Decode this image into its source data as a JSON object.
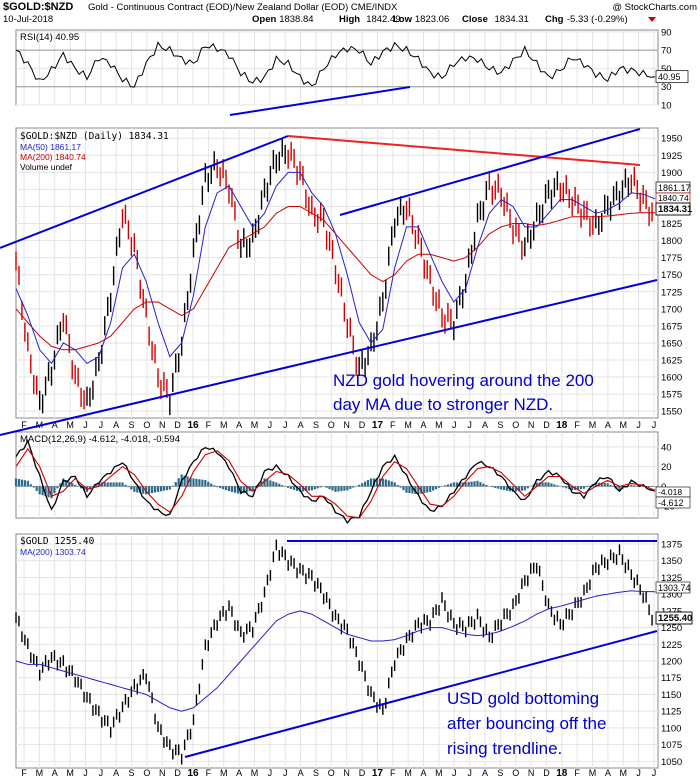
{
  "header": {
    "symbol": "$GOLD:$NZD",
    "description": "Gold - Continuous Contract (EOD)/New Zealand Dollar (EOD) CME/INDX",
    "watermark": "@ StockCharts.com",
    "date": "10-Jul-2018",
    "open_label": "Open",
    "open": "1838.84",
    "high_label": "High",
    "high": "1842.49",
    "low_label": "Low",
    "low": "1823.06",
    "close_label": "Close",
    "close": "1834.31",
    "chg_label": "Chg",
    "chg": "-5.33 (-0.29%)"
  },
  "colors": {
    "up": "#000000",
    "down": "#cc0000",
    "ma50": "#2222cc",
    "ma200": "#cc0000",
    "trendline": "#0000dd",
    "resistance": "#ee2222",
    "macd_hist": "#2a6a8a",
    "annotation": "#0000cc"
  },
  "x_axis": {
    "labels": [
      "F",
      "M",
      "A",
      "M",
      "J",
      "J",
      "A",
      "S",
      "O",
      "N",
      "D",
      "16",
      "F",
      "M",
      "A",
      "M",
      "J",
      "J",
      "A",
      "S",
      "O",
      "N",
      "D",
      "17",
      "F",
      "M",
      "A",
      "M",
      "J",
      "J",
      "A",
      "S",
      "O",
      "N",
      "D",
      "18",
      "F",
      "M",
      "A",
      "M",
      "J",
      "J"
    ]
  },
  "annotations": {
    "nzd_line1": "NZD gold hovering around the 200",
    "nzd_line2": "day MA due to stronger NZD.",
    "usd_line1": "USD gold bottoming",
    "usd_line2": "after bouncing off the",
    "usd_line3": "rising trendline."
  },
  "chart_data": [
    {
      "id": "rsi",
      "type": "line",
      "title": "RSI(14) 40.95",
      "yticks": [
        10,
        30,
        50,
        70,
        90
      ],
      "ylim": [
        10,
        92
      ],
      "last_label": "40.95",
      "series": [
        {
          "name": "RSI(14)",
          "values": [
            70,
            55,
            35,
            48,
            65,
            50,
            40,
            62,
            55,
            38,
            30,
            55,
            75,
            70,
            60,
            55,
            75,
            72,
            65,
            45,
            35,
            40,
            60,
            55,
            40,
            30,
            50,
            65,
            72,
            70,
            55,
            68,
            75,
            70,
            60,
            45,
            40,
            55,
            62,
            60,
            50,
            45,
            58,
            70,
            55,
            40,
            48,
            62,
            55,
            44,
            38,
            50,
            48,
            44,
            40.95
          ]
        }
      ]
    },
    {
      "id": "price",
      "type": "line",
      "title": "$GOLD:$NZD (Daily) 1834.31",
      "ylim": [
        1540,
        1965
      ],
      "yticks": [
        1550,
        1575,
        1600,
        1625,
        1650,
        1675,
        1700,
        1725,
        1750,
        1775,
        1800,
        1825,
        1850,
        1875,
        1900,
        1925,
        1950
      ],
      "legend": [
        "MA(50) 1861.17",
        "MA(200) 1840.74",
        "Volume undef"
      ],
      "last_labels": {
        "ma50": "1861.17",
        "ma200": "1840.74",
        "close": "1834.31"
      },
      "series": [
        {
          "name": "$GOLD:$NZD",
          "values": [
            1770,
            1640,
            1560,
            1610,
            1690,
            1600,
            1560,
            1620,
            1720,
            1840,
            1790,
            1690,
            1600,
            1570,
            1650,
            1780,
            1890,
            1910,
            1880,
            1790,
            1800,
            1870,
            1920,
            1930,
            1900,
            1840,
            1830,
            1760,
            1680,
            1610,
            1640,
            1710,
            1830,
            1850,
            1800,
            1740,
            1690,
            1680,
            1740,
            1830,
            1880,
            1870,
            1820,
            1790,
            1830,
            1870,
            1880,
            1860,
            1840,
            1820,
            1850,
            1870,
            1890,
            1860,
            1834.31
          ]
        },
        {
          "name": "MA(50)",
          "values": [
            1730,
            1690,
            1640,
            1620,
            1650,
            1640,
            1620,
            1630,
            1680,
            1760,
            1780,
            1740,
            1680,
            1630,
            1650,
            1720,
            1820,
            1870,
            1880,
            1850,
            1820,
            1840,
            1880,
            1900,
            1900,
            1870,
            1850,
            1810,
            1750,
            1680,
            1650,
            1670,
            1760,
            1820,
            1820,
            1780,
            1740,
            1710,
            1730,
            1790,
            1840,
            1860,
            1850,
            1820,
            1820,
            1840,
            1860,
            1860,
            1850,
            1840,
            1845,
            1855,
            1870,
            1868,
            1861.17
          ]
        },
        {
          "name": "MA(200)",
          "values": [
            1700,
            1680,
            1660,
            1645,
            1640,
            1640,
            1645,
            1650,
            1660,
            1680,
            1700,
            1710,
            1710,
            1700,
            1690,
            1700,
            1730,
            1760,
            1790,
            1800,
            1810,
            1820,
            1840,
            1850,
            1850,
            1840,
            1830,
            1810,
            1790,
            1770,
            1750,
            1740,
            1750,
            1770,
            1780,
            1780,
            1775,
            1770,
            1775,
            1790,
            1810,
            1820,
            1825,
            1825,
            1822,
            1825,
            1830,
            1835,
            1835,
            1835,
            1836,
            1838,
            1840,
            1841,
            1840.74
          ]
        }
      ]
    },
    {
      "id": "macd",
      "type": "line",
      "title": "MACD(12,26,9) -4.612, -4.018, -0.594",
      "ylim": [
        -32,
        55
      ],
      "yticks": [
        -20,
        0,
        20,
        40
      ],
      "last_labels": {
        "signal": "-4.018",
        "macd": "-4.612"
      },
      "series": [
        {
          "name": "MACD",
          "values": [
            30,
            45,
            10,
            -25,
            5,
            10,
            -10,
            5,
            15,
            25,
            5,
            -15,
            -25,
            -30,
            5,
            25,
            40,
            35,
            20,
            -5,
            -10,
            15,
            20,
            10,
            -5,
            -15,
            -10,
            -25,
            -35,
            -30,
            -5,
            20,
            30,
            10,
            -10,
            -25,
            -20,
            -5,
            10,
            25,
            20,
            10,
            -5,
            -15,
            5,
            15,
            10,
            -5,
            -10,
            5,
            10,
            -5,
            5,
            0,
            -4.612
          ]
        },
        {
          "name": "Signal",
          "values": [
            20,
            38,
            20,
            -10,
            -5,
            8,
            -3,
            0,
            10,
            20,
            12,
            -5,
            -18,
            -26,
            -10,
            15,
            32,
            36,
            26,
            5,
            -5,
            5,
            15,
            12,
            2,
            -10,
            -10,
            -18,
            -30,
            -32,
            -15,
            10,
            25,
            18,
            0,
            -18,
            -20,
            -10,
            5,
            18,
            20,
            14,
            2,
            -10,
            0,
            10,
            10,
            0,
            -7,
            0,
            6,
            0,
            3,
            1,
            -4.018
          ]
        }
      ]
    },
    {
      "id": "gold_usd",
      "type": "line",
      "title": "$GOLD 1255.40",
      "ylim": [
        1040,
        1390
      ],
      "yticks": [
        1050,
        1075,
        1100,
        1125,
        1150,
        1175,
        1200,
        1225,
        1250,
        1275,
        1300,
        1325,
        1350,
        1375
      ],
      "legend": [
        "MA(200) 1303.74"
      ],
      "last_labels": {
        "ma200": "1303.74",
        "close": "1255.40"
      },
      "series": [
        {
          "name": "$GOLD",
          "values": [
            1265,
            1220,
            1185,
            1205,
            1195,
            1175,
            1145,
            1120,
            1100,
            1130,
            1160,
            1180,
            1100,
            1070,
            1060,
            1110,
            1220,
            1260,
            1280,
            1240,
            1250,
            1300,
            1370,
            1350,
            1335,
            1325,
            1300,
            1265,
            1245,
            1200,
            1150,
            1125,
            1200,
            1230,
            1255,
            1260,
            1290,
            1255,
            1250,
            1265,
            1235,
            1260,
            1280,
            1320,
            1345,
            1280,
            1255,
            1275,
            1300,
            1340,
            1350,
            1360,
            1330,
            1300,
            1255.4
          ]
        },
        {
          "name": "MA(200)",
          "values": [
            1200,
            1195,
            1195,
            1190,
            1185,
            1180,
            1175,
            1170,
            1165,
            1160,
            1155,
            1150,
            1140,
            1130,
            1125,
            1130,
            1145,
            1160,
            1180,
            1200,
            1220,
            1240,
            1260,
            1270,
            1275,
            1270,
            1260,
            1250,
            1240,
            1235,
            1230,
            1230,
            1232,
            1238,
            1245,
            1250,
            1250,
            1245,
            1240,
            1238,
            1240,
            1245,
            1252,
            1260,
            1270,
            1278,
            1282,
            1287,
            1292,
            1297,
            1300,
            1303,
            1305,
            1304,
            1303.74
          ]
        }
      ]
    }
  ]
}
